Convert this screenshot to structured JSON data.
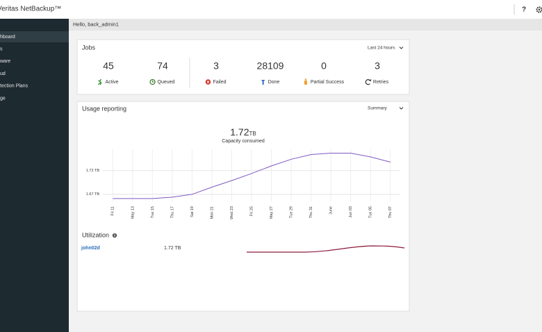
{
  "header": {
    "brand": "Veritas NetBackup™",
    "help": "?"
  },
  "sidebar": {
    "items": [
      "hboard",
      "s",
      "ware",
      "ud",
      "tection Plans",
      "ge"
    ]
  },
  "greeting": "Hello, back_admin1",
  "jobs": {
    "title": "Jobs",
    "range": "Last 24 hours",
    "stats": [
      {
        "value": 45,
        "label": "Active"
      },
      {
        "value": 74,
        "label": "Queued"
      },
      {
        "value": 3,
        "label": "Failed"
      },
      {
        "value": 28109,
        "label": "Done"
      },
      {
        "value": 0,
        "label": "Partial Success"
      },
      {
        "value": 3,
        "label": "Retries"
      }
    ]
  },
  "usage": {
    "title": "Usage reporting",
    "view": "Summary",
    "capacity": {
      "value": 1.72,
      "unit": "TB",
      "label": "Capacity consumed"
    }
  },
  "chart_data": {
    "type": "line",
    "categories": [
      "Fri 11",
      "May 13",
      "Tue 15",
      "Thu 17",
      "Sat 19",
      "Mon 21",
      "Wed 23",
      "Fri 25",
      "May 27",
      "Tue 29",
      "Thu 31",
      "June",
      "Jun 03",
      "Tue 05",
      "Thu 07"
    ],
    "values": [
      1.661,
      1.661,
      1.661,
      1.664,
      1.67,
      1.685,
      1.699,
      1.714,
      1.73,
      1.744,
      1.754,
      1.757,
      1.757,
      1.749,
      1.738
    ],
    "color": "#7e57c2",
    "ylim": [
      1.655,
      1.765
    ],
    "yticks": [
      {
        "value": 1.67,
        "label": "1.67 TB"
      },
      {
        "value": 1.72,
        "label": "1.72 TB"
      }
    ],
    "grid": true
  },
  "utilization": {
    "title": "Utilization",
    "rows": [
      {
        "name": "john02d",
        "size": "1.72 TB"
      }
    ]
  }
}
